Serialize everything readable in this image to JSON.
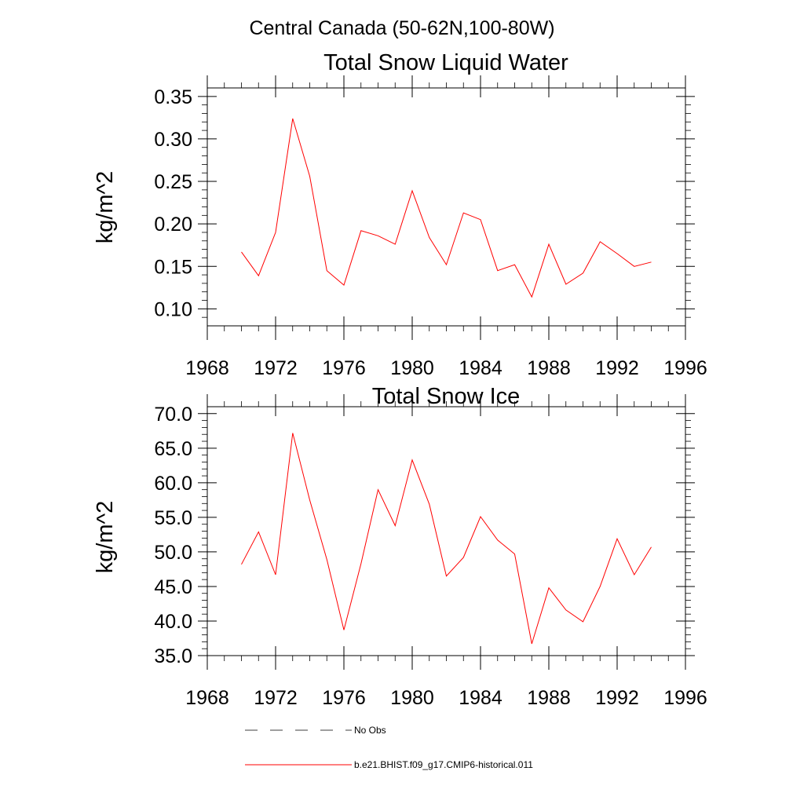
{
  "figure": {
    "title": "Central Canada (50-62N,100-80W)"
  },
  "legend": {
    "items": [
      {
        "label": "No Obs",
        "style": "dashed",
        "color": "#000000"
      },
      {
        "label": "b.e21.BHIST.f09_g17.CMIP6-historical.011",
        "style": "solid",
        "color": "#ff0000"
      }
    ]
  },
  "chart_data": [
    {
      "type": "line",
      "title": "Total Snow Liquid Water",
      "ylabel": "kg/m^2",
      "xlabel": "",
      "xlim": [
        1968,
        1996
      ],
      "ylim": [
        0.08,
        0.36
      ],
      "xticks": [
        1968,
        1972,
        1976,
        1980,
        1984,
        1988,
        1992,
        1996
      ],
      "yticks": [
        0.1,
        0.15,
        0.2,
        0.25,
        0.3,
        0.35
      ],
      "ytick_labels": [
        "0.10",
        "0.15",
        "0.20",
        "0.25",
        "0.30",
        "0.35"
      ],
      "grid": false,
      "series": [
        {
          "name": "b.e21.BHIST.f09_g17.CMIP6-historical.011",
          "color": "#ff0000",
          "x": [
            1970,
            1971,
            1972,
            1973,
            1974,
            1975,
            1976,
            1977,
            1978,
            1979,
            1980,
            1981,
            1982,
            1983,
            1984,
            1985,
            1986,
            1987,
            1988,
            1989,
            1990,
            1991,
            1992,
            1993,
            1994
          ],
          "y": [
            0.167,
            0.139,
            0.19,
            0.324,
            0.256,
            0.145,
            0.128,
            0.192,
            0.186,
            0.176,
            0.239,
            0.184,
            0.152,
            0.213,
            0.205,
            0.145,
            0.152,
            0.114,
            0.176,
            0.129,
            0.142,
            0.179,
            0.165,
            0.15,
            0.155
          ]
        }
      ]
    },
    {
      "type": "line",
      "title": "Total Snow Ice",
      "ylabel": "kg/m^2",
      "xlabel": "",
      "xlim": [
        1968,
        1996
      ],
      "ylim": [
        35,
        71
      ],
      "xticks": [
        1968,
        1972,
        1976,
        1980,
        1984,
        1988,
        1992,
        1996
      ],
      "yticks": [
        35,
        40,
        45,
        50,
        55,
        60,
        65,
        70
      ],
      "ytick_labels": [
        "35.0",
        "40.0",
        "45.0",
        "50.0",
        "55.0",
        "60.0",
        "65.0",
        "70.0"
      ],
      "grid": false,
      "series": [
        {
          "name": "b.e21.BHIST.f09_g17.CMIP6-historical.011",
          "color": "#ff0000",
          "x": [
            1970,
            1971,
            1972,
            1973,
            1974,
            1975,
            1976,
            1977,
            1978,
            1979,
            1980,
            1981,
            1982,
            1983,
            1984,
            1985,
            1986,
            1987,
            1988,
            1989,
            1990,
            1991,
            1992,
            1993,
            1994
          ],
          "y": [
            48.2,
            52.9,
            46.7,
            67.2,
            57.5,
            48.9,
            38.7,
            48.3,
            59.0,
            53.8,
            63.3,
            56.9,
            46.5,
            49.2,
            55.1,
            51.7,
            49.7,
            36.7,
            44.8,
            41.6,
            39.9,
            45.0,
            51.9,
            46.7,
            50.7
          ]
        }
      ]
    }
  ]
}
